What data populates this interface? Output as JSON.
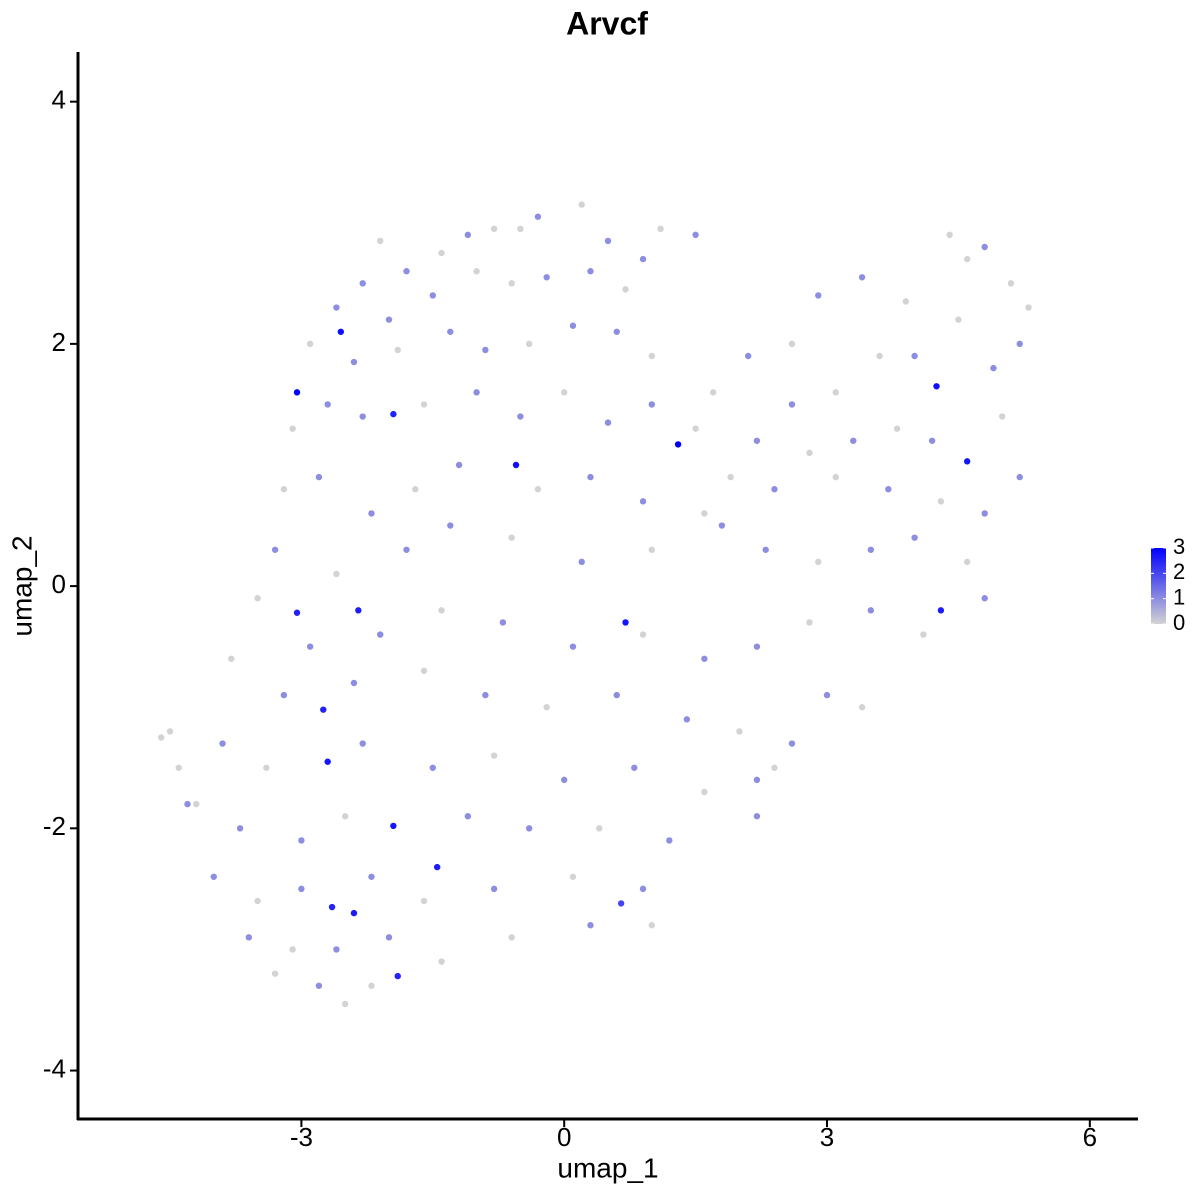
{
  "chart_data": {
    "type": "scatter",
    "title": "Arvcf",
    "x_label": "umap_1",
    "y_label": "umap_2",
    "xlim": [
      -5.55,
      6.55
    ],
    "ylim": [
      -4.4,
      4.41
    ],
    "xticks": [
      -3,
      0,
      3,
      6
    ],
    "yticks": [
      -4,
      -2,
      0,
      2,
      4
    ],
    "color_low": "#d3d3d3",
    "color_high": "#0000ff",
    "color_lim": [
      0,
      3
    ],
    "color_ticks": [
      0,
      1,
      2,
      3
    ],
    "x": [
      -2.55,
      -3.05,
      -1.95,
      -0.55,
      1.3,
      4.25,
      4.6,
      0.7,
      -2.35,
      -3.05,
      4.3,
      -2.7,
      -1.95,
      -1.45,
      -2.65,
      -2.4,
      -1.9,
      -2.75,
      0.65,
      -2.1,
      -1.8,
      -1.4,
      -1.1,
      -0.8,
      -0.5,
      -0.3,
      0.2,
      0.5,
      0.9,
      1.1,
      -2.6,
      -2.3,
      -2.0,
      -1.5,
      -1.0,
      -0.6,
      -0.2,
      0.3,
      0.7,
      -2.9,
      -2.4,
      -1.9,
      -1.3,
      -0.9,
      -0.4,
      0.1,
      0.6,
      1.0,
      -3.1,
      -2.7,
      -2.3,
      -1.6,
      -1.0,
      -0.5,
      0.0,
      0.5,
      1.0,
      1.5,
      -3.2,
      -2.8,
      -2.2,
      -1.7,
      -1.2,
      -0.3,
      0.3,
      0.9,
      1.6,
      -3.3,
      -2.6,
      -1.8,
      -1.3,
      -0.6,
      0.2,
      1.0,
      1.8,
      -3.5,
      -2.9,
      -2.1,
      -1.4,
      -0.7,
      0.1,
      0.9,
      1.6,
      -3.8,
      -3.2,
      -2.4,
      -1.6,
      -0.9,
      -0.2,
      0.6,
      1.4,
      2.0,
      -3.9,
      -3.4,
      -2.3,
      -1.5,
      -0.8,
      0.0,
      0.8,
      1.6,
      2.2,
      -4.2,
      -3.7,
      -3.0,
      -2.5,
      -1.1,
      -0.4,
      0.4,
      1.2,
      -4.0,
      -3.5,
      -3.0,
      -2.2,
      -1.6,
      -0.8,
      0.1,
      0.9,
      -3.6,
      -3.1,
      -2.6,
      -2.0,
      -1.4,
      -0.6,
      0.3,
      -3.3,
      -2.8,
      -2.5,
      -2.2,
      -4.6,
      -4.5,
      -4.4,
      -4.3,
      1.5,
      2.6,
      2.9,
      3.4,
      3.9,
      4.4,
      4.6,
      4.8,
      5.1,
      5.3,
      5.2,
      4.9,
      4.5,
      4.0,
      3.6,
      3.1,
      2.6,
      2.1,
      1.7,
      2.2,
      2.8,
      3.3,
      3.8,
      4.2,
      5.0,
      5.2,
      4.8,
      4.3,
      3.7,
      3.1,
      2.4,
      1.9,
      2.3,
      2.9,
      3.5,
      4.0,
      4.6,
      4.8,
      4.1,
      3.5,
      2.8,
      2.2,
      3.0,
      3.4,
      2.6,
      2.4,
      2.2,
      1.0
    ],
    "y": [
      2.1,
      1.6,
      1.42,
      1.0,
      1.17,
      1.65,
      1.03,
      -0.3,
      -0.2,
      -0.22,
      -0.2,
      -1.45,
      -1.98,
      -2.32,
      -2.65,
      -2.7,
      -3.22,
      -1.02,
      -2.62,
      2.85,
      2.6,
      2.75,
      2.9,
      2.95,
      2.95,
      3.05,
      3.15,
      2.85,
      2.7,
      2.95,
      2.3,
      2.5,
      2.2,
      2.4,
      2.6,
      2.5,
      2.55,
      2.6,
      2.45,
      2.0,
      1.85,
      1.95,
      2.1,
      1.95,
      2.0,
      2.15,
      2.1,
      1.9,
      1.3,
      1.5,
      1.4,
      1.5,
      1.6,
      1.4,
      1.6,
      1.35,
      1.5,
      1.3,
      0.8,
      0.9,
      0.6,
      0.8,
      1.0,
      0.8,
      0.9,
      0.7,
      0.6,
      0.3,
      0.1,
      0.3,
      0.5,
      0.4,
      0.2,
      0.3,
      0.5,
      -0.1,
      -0.5,
      -0.4,
      -0.2,
      -0.3,
      -0.5,
      -0.4,
      -0.6,
      -0.6,
      -0.9,
      -0.8,
      -0.7,
      -0.9,
      -1.0,
      -0.9,
      -1.1,
      -1.2,
      -1.3,
      -1.5,
      -1.3,
      -1.5,
      -1.4,
      -1.6,
      -1.5,
      -1.7,
      -1.6,
      -1.8,
      -2.0,
      -2.1,
      -1.9,
      -1.9,
      -2.0,
      -2.0,
      -2.1,
      -2.4,
      -2.6,
      -2.5,
      -2.4,
      -2.6,
      -2.5,
      -2.4,
      -2.5,
      -2.9,
      -3.0,
      -3.0,
      -2.9,
      -3.1,
      -2.9,
      -2.8,
      -3.2,
      -3.3,
      -3.45,
      -3.3,
      -1.25,
      -1.2,
      -1.5,
      -1.8,
      2.9,
      2.0,
      2.4,
      2.55,
      2.35,
      2.9,
      2.7,
      2.8,
      2.5,
      2.3,
      2.0,
      1.8,
      2.2,
      1.9,
      1.9,
      1.6,
      1.5,
      1.9,
      1.6,
      1.2,
      1.1,
      1.2,
      1.3,
      1.2,
      1.4,
      0.9,
      0.6,
      0.7,
      0.8,
      0.9,
      0.8,
      0.9,
      0.3,
      0.2,
      0.3,
      0.4,
      0.2,
      -0.1,
      -0.4,
      -0.2,
      -0.3,
      -0.5,
      -0.9,
      -1.0,
      -1.3,
      -1.5,
      -1.9,
      -2.8
    ],
    "values": [
      2.8,
      3,
      2.5,
      2.8,
      3,
      2.8,
      2.7,
      2.7,
      2.6,
      2.5,
      2.6,
      2.7,
      2.7,
      2.6,
      2.5,
      2.6,
      2.5,
      2.5,
      2,
      0,
      1,
      0,
      1,
      0,
      0,
      1,
      0,
      1,
      1,
      0,
      1,
      1,
      1,
      1,
      0,
      0,
      1,
      1,
      0,
      0,
      1,
      0,
      1,
      1,
      0,
      1,
      1,
      0,
      0,
      1,
      1,
      0,
      1,
      1,
      0,
      1,
      1,
      0,
      0,
      1,
      1,
      0,
      1,
      0,
      1,
      1,
      0,
      1,
      0,
      1,
      1,
      0,
      1,
      0,
      1,
      0,
      1,
      1,
      0,
      1,
      1,
      0,
      1,
      0,
      1,
      1,
      0,
      1,
      0,
      1,
      1,
      0,
      1,
      0,
      1,
      1,
      0,
      1,
      1,
      0,
      1,
      0,
      1,
      1,
      0,
      1,
      1,
      0,
      1,
      1,
      0,
      1,
      1,
      0,
      1,
      0,
      1,
      1,
      0,
      1,
      1,
      0,
      0,
      1,
      0,
      1,
      0,
      0,
      0,
      0,
      0,
      1,
      1,
      0,
      1,
      1,
      0,
      0,
      0,
      1,
      0,
      0,
      1,
      1,
      0,
      1,
      0,
      0,
      1,
      1,
      0,
      1,
      0,
      1,
      0,
      1,
      0,
      1,
      1,
      0,
      1,
      0,
      1,
      0,
      1,
      0,
      1,
      1,
      0,
      1,
      0,
      1,
      0,
      1,
      1,
      0,
      1,
      0,
      1,
      0
    ]
  }
}
